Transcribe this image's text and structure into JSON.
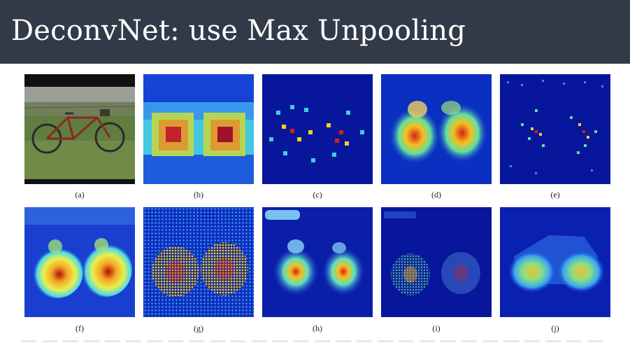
{
  "slide": {
    "title": "DeconvNet: use Max Unpooling"
  },
  "figures": [
    {
      "caption": "(a)",
      "kind": "photo"
    },
    {
      "caption": "(b)",
      "kind": "coarse-heatmap"
    },
    {
      "caption": "(c)",
      "kind": "sparse-dots"
    },
    {
      "caption": "(d)",
      "kind": "blobs"
    },
    {
      "caption": "(e)",
      "kind": "sparse-dots"
    },
    {
      "caption": "(f)",
      "kind": "smooth-blobs"
    },
    {
      "caption": "(g)",
      "kind": "textured-blobs"
    },
    {
      "caption": "(h)",
      "kind": "smooth-blobs"
    },
    {
      "caption": "(i)",
      "kind": "faint-blobs"
    },
    {
      "caption": "(j)",
      "kind": "bike-outline"
    }
  ],
  "colors": {
    "header_bg": "#323a48",
    "heat_low": "#08169c",
    "heat_mid": "#3fd0e0",
    "heat_high": "#d8201a"
  }
}
